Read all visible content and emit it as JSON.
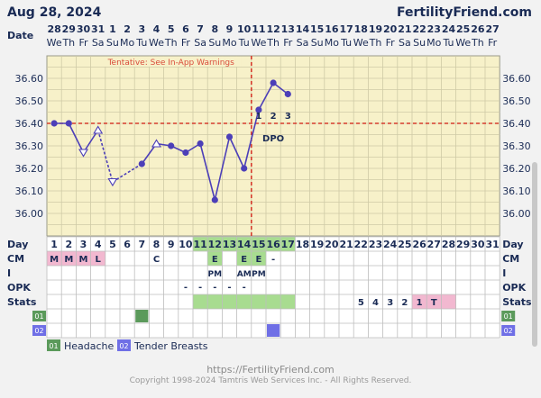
{
  "header": {
    "date": "Aug 28, 2024",
    "site": "FertilityFriend.com"
  },
  "labels": {
    "date_row": "Date",
    "day": "Day",
    "cm": "CM",
    "i": "I",
    "opk": "OPK",
    "stats": "Stats",
    "sym1": "01",
    "sym2": "02",
    "dpo": "DPO",
    "warning": "Tentative: See In-App Warnings"
  },
  "legend": [
    {
      "code": "01",
      "label": "Headache",
      "color": "#5b9a5b"
    },
    {
      "code": "02",
      "label": "Tender Breasts",
      "color": "#6f6fe6"
    }
  ],
  "footer": {
    "url": "https://FertilityFriend.com",
    "copyright": "Copyright 1998-2024 Tamtris Web Services Inc. - All Rights Reserved."
  },
  "chart_data": {
    "type": "line",
    "dates": [
      "28",
      "29",
      "30",
      "31",
      "1",
      "2",
      "3",
      "4",
      "5",
      "6",
      "7",
      "8",
      "9",
      "10",
      "11",
      "12",
      "13",
      "14",
      "15",
      "16",
      "17",
      "18",
      "19",
      "20",
      "21",
      "22",
      "23",
      "24",
      "25",
      "26",
      "27"
    ],
    "weekdays": [
      "We",
      "Th",
      "Fr",
      "Sa",
      "Su",
      "Mo",
      "Tu",
      "We",
      "Th",
      "Fr",
      "Sa",
      "Su",
      "Mo",
      "Tu",
      "We",
      "Th",
      "Fr",
      "Sa",
      "Su",
      "Mo",
      "Tu",
      "We",
      "Th",
      "Fr",
      "Sa",
      "Su",
      "Mo",
      "Tu",
      "We",
      "Th",
      "Fr"
    ],
    "cycle_days": [
      1,
      2,
      3,
      4,
      5,
      6,
      7,
      8,
      9,
      10,
      11,
      12,
      13,
      14,
      15,
      16,
      17,
      18,
      19,
      20,
      21,
      22,
      23,
      24,
      25,
      26,
      27,
      28,
      29,
      30,
      31
    ],
    "ylim": [
      35.9,
      36.7
    ],
    "y_ticks": [
      "36.60",
      "36.50",
      "36.40",
      "36.30",
      "36.20",
      "36.10",
      "36.00"
    ],
    "temps": [
      {
        "day": 1,
        "v": 36.4,
        "m": "dot"
      },
      {
        "day": 2,
        "v": 36.4,
        "m": "dot"
      },
      {
        "day": 3,
        "v": 36.27,
        "m": "tri-down"
      },
      {
        "day": 4,
        "v": 36.37,
        "m": "tri-up"
      },
      {
        "day": 5,
        "v": 36.14,
        "m": "tri-down"
      },
      {
        "day": 7,
        "v": 36.22,
        "m": "dot"
      },
      {
        "day": 8,
        "v": 36.31,
        "m": "tri-up"
      },
      {
        "day": 9,
        "v": 36.3,
        "m": "dot"
      },
      {
        "day": 10,
        "v": 36.27,
        "m": "dot"
      },
      {
        "day": 11,
        "v": 36.31,
        "m": "dot"
      },
      {
        "day": 12,
        "v": 36.06,
        "m": "dot"
      },
      {
        "day": 13,
        "v": 36.34,
        "m": "dot"
      },
      {
        "day": 14,
        "v": 36.2,
        "m": "dot"
      },
      {
        "day": 15,
        "v": 36.46,
        "m": "dot"
      },
      {
        "day": 16,
        "v": 36.58,
        "m": "dot"
      },
      {
        "day": 17,
        "v": 36.53,
        "m": "dot"
      }
    ],
    "dashed_segments": [
      [
        4,
        5
      ],
      [
        5,
        7
      ]
    ],
    "coverline": 36.4,
    "ovulation_day": 14,
    "dpo": [
      {
        "day": 15,
        "n": "1"
      },
      {
        "day": 16,
        "n": "2"
      },
      {
        "day": 17,
        "n": "3"
      }
    ],
    "cm": [
      {
        "day": 1,
        "t": "M"
      },
      {
        "day": 2,
        "t": "M"
      },
      {
        "day": 3,
        "t": "M"
      },
      {
        "day": 4,
        "t": "L"
      },
      {
        "day": 8,
        "t": "C"
      },
      {
        "day": 12,
        "t": "E"
      },
      {
        "day": 14,
        "t": "E"
      },
      {
        "day": 15,
        "t": "E"
      },
      {
        "day": 16,
        "t": "-"
      }
    ],
    "intercourse": [
      {
        "day": 12,
        "t": "PM"
      },
      {
        "day": 14,
        "t": "AM"
      },
      {
        "day": 15,
        "t": "PM"
      }
    ],
    "opk": [
      {
        "day": 10,
        "t": "-"
      },
      {
        "day": 11,
        "t": "-"
      },
      {
        "day": 12,
        "t": "-"
      },
      {
        "day": 13,
        "t": "-"
      },
      {
        "day": 14,
        "t": "-"
      }
    ],
    "fertile_days": [
      11,
      12,
      13,
      14,
      15,
      16,
      17
    ],
    "stats": [
      {
        "day": 22,
        "t": "5"
      },
      {
        "day": 23,
        "t": "4"
      },
      {
        "day": 24,
        "t": "3"
      },
      {
        "day": 25,
        "t": "2"
      },
      {
        "day": 26,
        "t": "1"
      },
      {
        "day": 27,
        "t": "T"
      }
    ],
    "symptom1_days": [
      7
    ],
    "symptom2_days": [
      16
    ]
  }
}
